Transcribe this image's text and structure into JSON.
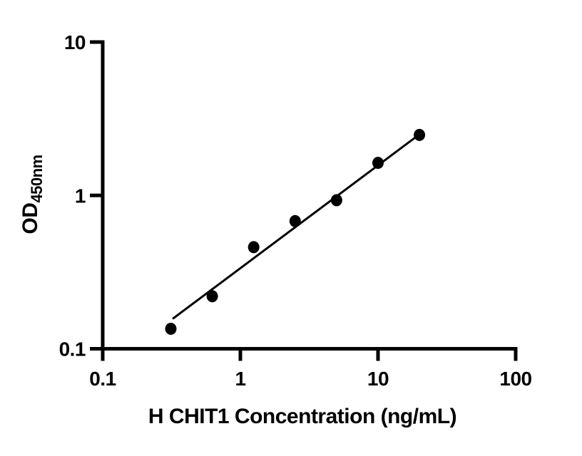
{
  "figure": {
    "background": "#ffffff",
    "axis_color": "#000000"
  },
  "chart_data": {
    "type": "scatter",
    "title": "",
    "xlabel": "H CHIT1 Concentration (ng/mL)",
    "ylabel_base": "OD",
    "ylabel_sub": "450nm",
    "xscale": "log",
    "yscale": "log",
    "xlim": [
      0.1,
      100
    ],
    "ylim": [
      0.1,
      10
    ],
    "x_tick_values": [
      0.1,
      1,
      10,
      100
    ],
    "x_tick_labels": [
      "0.1",
      "1",
      "10",
      "100"
    ],
    "y_tick_values": [
      0.1,
      1,
      10
    ],
    "y_tick_labels": [
      "0.1",
      "1",
      "10"
    ],
    "x": [
      0.3125,
      0.625,
      1.25,
      2.5,
      5,
      10,
      20
    ],
    "y": [
      0.135,
      0.22,
      0.46,
      0.68,
      0.93,
      1.63,
      2.48
    ],
    "fit_line": {
      "x1": 0.326,
      "y1": 0.158,
      "x2": 20,
      "y2": 2.5
    },
    "marker_color": "#000000",
    "line_color": "#000000",
    "grid": "off",
    "legend": null
  }
}
